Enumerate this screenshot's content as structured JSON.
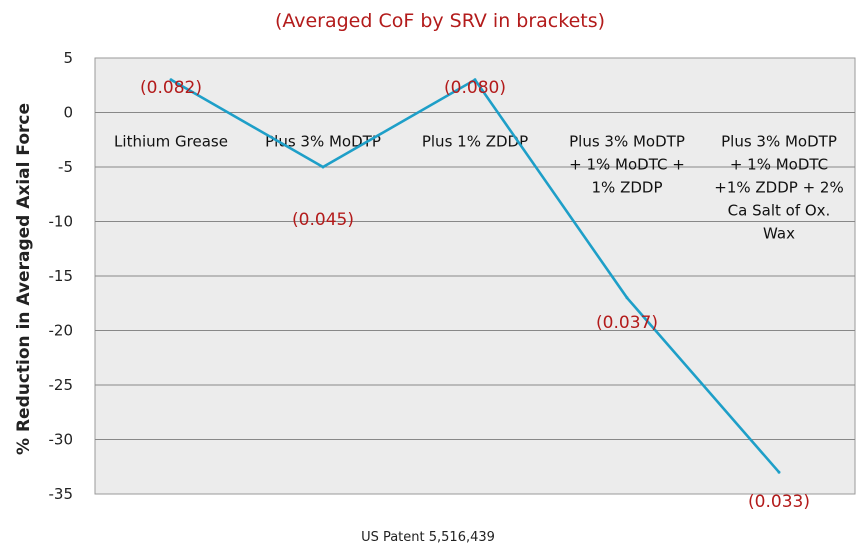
{
  "source_note": "US Patent 5,516,439",
  "chart_data": {
    "type": "line",
    "title": "(Averaged CoF by SRV in brackets)",
    "ylabel": "% Reduction in Averaged Axial Force",
    "xlabel": "",
    "ylim": [
      -35,
      5
    ],
    "yticks": [
      5,
      0,
      -5,
      -10,
      -15,
      -20,
      -25,
      -30,
      -35
    ],
    "grid": true,
    "legend": "none",
    "line_color": "#1e9fc8",
    "categories": [
      [
        "Lithium Grease"
      ],
      [
        "Plus 3% MoDTP"
      ],
      [
        "Plus 1% ZDDP"
      ],
      [
        "Plus 3% MoDTP",
        "+ 1% MoDTC +",
        "1% ZDDP"
      ],
      [
        "Plus 3% MoDTP",
        "+ 1% MoDTC",
        "+1% ZDDP + 2%",
        "Ca Salt of Ox.",
        "Wax"
      ]
    ],
    "series": [
      {
        "values": [
          3,
          -5,
          3,
          -17,
          -33
        ]
      }
    ],
    "data_labels": [
      "(0.082)",
      "(0.045)",
      "(0.080)",
      "(0.037)",
      "(0.033)"
    ]
  }
}
